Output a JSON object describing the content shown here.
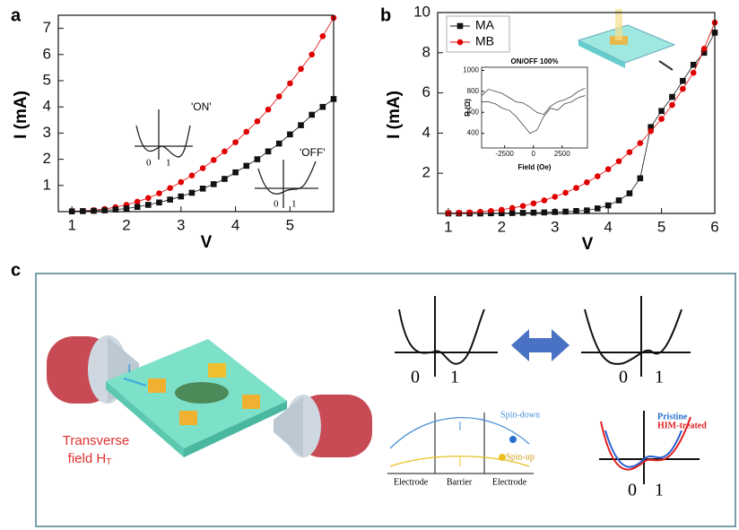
{
  "panel_labels": [
    "a",
    "b",
    "c"
  ],
  "chart_data": [
    {
      "type": "line",
      "x_label": "V",
      "y_label": "I (mA)",
      "x": [
        1,
        1.2,
        1.4,
        1.6,
        1.8,
        2,
        2.2,
        2.4,
        2.6,
        2.8,
        3,
        3.2,
        3.4,
        3.6,
        3.8,
        4,
        4.2,
        4.4,
        4.6,
        4.8,
        5,
        5.2,
        5.4,
        5.6,
        5.8
      ],
      "series": [
        {
          "color": "#e00000",
          "marker": "circle",
          "values": [
            0.02,
            0.03,
            0.06,
            0.1,
            0.17,
            0.26,
            0.38,
            0.52,
            0.7,
            0.9,
            1.13,
            1.38,
            1.66,
            1.97,
            2.3,
            2.65,
            3.05,
            3.45,
            3.9,
            4.4,
            4.9,
            5.45,
            6.0,
            6.7,
            7.4
          ]
        },
        {
          "color": "#111111",
          "marker": "square",
          "values": [
            0.01,
            0.02,
            0.03,
            0.05,
            0.08,
            0.12,
            0.18,
            0.26,
            0.35,
            0.46,
            0.58,
            0.72,
            0.88,
            1.05,
            1.25,
            1.5,
            1.75,
            2.0,
            2.3,
            2.6,
            2.95,
            3.3,
            3.7,
            4.0,
            4.3
          ]
        }
      ],
      "xlim": [
        0.75,
        5.8
      ],
      "ylim": [
        0,
        7.5
      ],
      "xticks": [
        1,
        2,
        3,
        4,
        5
      ],
      "yticks": [
        1,
        2,
        3,
        4,
        5,
        6,
        7
      ],
      "annotations": [
        "'ON'",
        "'OFF'"
      ],
      "inset_labels": [
        "0",
        "1",
        "0",
        "1"
      ]
    },
    {
      "type": "line",
      "x_label": "V",
      "y_label": "I (mA)",
      "x": [
        1,
        1.2,
        1.4,
        1.6,
        1.8,
        2,
        2.2,
        2.4,
        2.6,
        2.8,
        3,
        3.2,
        3.4,
        3.6,
        3.8,
        4,
        4.2,
        4.4,
        4.6,
        4.8,
        5,
        5.2,
        5.4,
        5.6,
        5.8,
        6
      ],
      "series": [
        {
          "name": "MA",
          "color": "#111111",
          "marker": "square",
          "values": [
            0,
            0,
            0,
            0,
            0.01,
            0.01,
            0.02,
            0.03,
            0.04,
            0.05,
            0.07,
            0.09,
            0.12,
            0.15,
            0.25,
            0.4,
            0.65,
            1.0,
            1.75,
            4.3,
            5.1,
            5.8,
            6.6,
            7.4,
            8.0,
            9.0
          ]
        },
        {
          "name": "MB",
          "color": "#e00000",
          "marker": "circle",
          "values": [
            0.02,
            0.03,
            0.05,
            0.08,
            0.12,
            0.18,
            0.27,
            0.37,
            0.5,
            0.65,
            0.83,
            1.03,
            1.27,
            1.55,
            1.85,
            2.2,
            2.6,
            3.05,
            3.5,
            4.1,
            4.7,
            5.4,
            6.2,
            7.0,
            8.2,
            9.5
          ]
        }
      ],
      "xlim": [
        0.8,
        6
      ],
      "ylim": [
        0,
        10
      ],
      "xticks": [
        1,
        2,
        3,
        4,
        5,
        6
      ],
      "yticks": [
        2,
        4,
        6,
        8,
        10
      ],
      "legend": "upper left"
    },
    {
      "type": "line",
      "title": "ON/OFF 100%",
      "x_label": "Field (Oe)",
      "y_label": "R (Ω)",
      "x": [
        -4500,
        -3900,
        -3300,
        -2700,
        -2100,
        -1500,
        -900,
        -300,
        300,
        900,
        1500,
        2100,
        2700,
        3300,
        3900,
        4500
      ],
      "series": [
        {
          "color": "#444444",
          "values": [
            760,
            820,
            800,
            780,
            740,
            700,
            690,
            650,
            600,
            580,
            660,
            700,
            720,
            750,
            800,
            830
          ]
        },
        {
          "color": "#444444",
          "values": [
            700,
            700,
            680,
            640,
            620,
            560,
            480,
            400,
            430,
            560,
            640,
            620,
            680,
            700,
            740,
            760
          ]
        }
      ],
      "xlim": [
        -4500,
        4700
      ],
      "ylim": [
        260,
        1030
      ],
      "xticks": [
        -2500,
        0,
        2500
      ],
      "yticks": [
        400,
        600,
        800,
        1000
      ]
    }
  ],
  "diagram": {
    "current": "I",
    "field_line1": "Transverse",
    "field_line2": "field H",
    "field_sub": "T",
    "well_labels": [
      "0",
      "1",
      "0",
      "1"
    ],
    "spin_down": "Spin-down",
    "spin_up": "Spin-up",
    "regions": [
      "Electrode",
      "Barrier",
      "Electrode"
    ],
    "pristine": "Pristine",
    "treated": "HIM-treated",
    "small_well_labels": [
      "0",
      "1"
    ]
  }
}
